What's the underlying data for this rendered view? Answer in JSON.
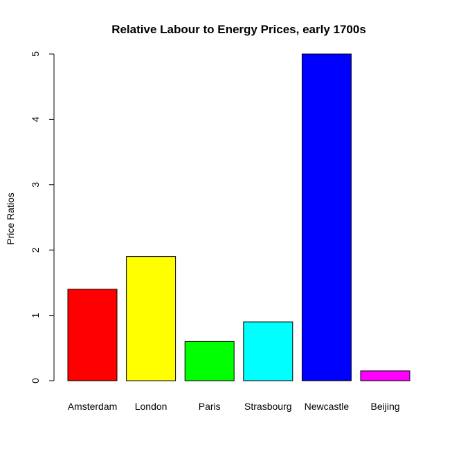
{
  "chart_data": {
    "type": "bar",
    "title": "Relative Labour to Energy Prices, early 1700s",
    "xlabel": "",
    "ylabel": "Price Ratios",
    "categories": [
      "Amsterdam",
      "London",
      "Paris",
      "Strasbourg",
      "Newcastle",
      "Beijing"
    ],
    "values": [
      1.4,
      1.9,
      0.6,
      0.9,
      5.0,
      0.15
    ],
    "colors": [
      "#ff0000",
      "#ffff00",
      "#00ff00",
      "#00ffff",
      "#0000ff",
      "#ff00ff"
    ],
    "ylim": [
      0,
      5
    ],
    "yticks": [
      "0",
      "1",
      "2",
      "3",
      "4",
      "5"
    ],
    "grid": false,
    "legend": "none"
  }
}
